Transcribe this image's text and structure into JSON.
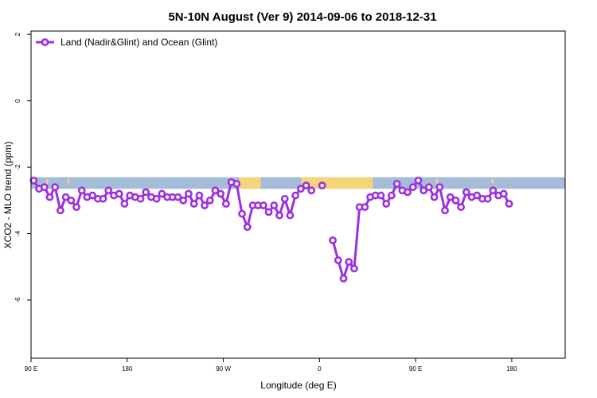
{
  "chart_data": {
    "type": "line",
    "title": "5N-10N August (Ver 9)   2014-09-06 to 2018-12-31",
    "xlabel": "Longitude (deg E)",
    "ylabel": "XCO2 - MLO trend (ppm)",
    "xlim": [
      90,
      590
    ],
    "ylim": [
      -7.75,
      2.1
    ],
    "x_ticks": [
      {
        "value": 90,
        "label": "90 E"
      },
      {
        "value": 180,
        "label": "180"
      },
      {
        "value": 270,
        "label": "90 W"
      },
      {
        "value": 360,
        "label": "0"
      },
      {
        "value": 450,
        "label": "90 E"
      },
      {
        "value": 540,
        "label": "180"
      }
    ],
    "y_ticks": [
      {
        "value": 2,
        "label": "2"
      },
      {
        "value": 0,
        "label": "0"
      },
      {
        "value": -2,
        "label": "-2"
      },
      {
        "value": -4,
        "label": "-4"
      },
      {
        "value": -6,
        "label": "-6"
      }
    ],
    "legend": {
      "position": "top-left",
      "entries": [
        "Land (Nadir&Glint) and Ocean (Glint)"
      ]
    },
    "grid": false,
    "series": [
      {
        "name": "Land (Nadir&Glint) and Ocean (Glint)",
        "color": "#9b30e0",
        "points": [
          [
            92.5,
            -2.4
          ],
          [
            97.5,
            -2.65
          ],
          [
            102.5,
            -2.6
          ],
          [
            107.5,
            -2.9
          ],
          [
            112.5,
            -2.6
          ],
          [
            117.5,
            -3.3
          ],
          [
            122.5,
            -2.9
          ],
          [
            127.5,
            -3.0
          ],
          [
            132.5,
            -3.2
          ],
          [
            137.5,
            -2.7
          ],
          [
            142.5,
            -2.9
          ],
          [
            147.5,
            -2.85
          ],
          [
            152.5,
            -2.95
          ],
          [
            157.5,
            -2.95
          ],
          [
            162.5,
            -2.7
          ],
          [
            167.5,
            -2.85
          ],
          [
            172.5,
            -2.8
          ],
          [
            177.5,
            -3.1
          ],
          [
            182.5,
            -2.85
          ],
          [
            187.5,
            -2.9
          ],
          [
            192.5,
            -2.95
          ],
          [
            197.5,
            -2.75
          ],
          [
            202.5,
            -2.9
          ],
          [
            207.5,
            -2.95
          ],
          [
            212.5,
            -2.8
          ],
          [
            217.5,
            -2.9
          ],
          [
            222.5,
            -2.9
          ],
          [
            227.5,
            -2.9
          ],
          [
            232.5,
            -3.0
          ],
          [
            237.5,
            -2.8
          ],
          [
            242.5,
            -3.1
          ],
          [
            247.5,
            -2.85
          ],
          [
            252.5,
            -3.15
          ],
          [
            257.5,
            -3.0
          ],
          [
            262.5,
            -2.7
          ],
          [
            267.5,
            -2.8
          ],
          [
            272.5,
            -3.1
          ],
          [
            277.5,
            -2.45
          ],
          [
            282.5,
            -2.5
          ],
          [
            287.5,
            -3.4
          ],
          [
            292.5,
            -3.8
          ],
          [
            297.5,
            -3.15
          ],
          [
            302.5,
            -3.15
          ],
          [
            307.5,
            -3.15
          ],
          [
            312.5,
            -3.35
          ],
          [
            317.5,
            -3.15
          ],
          [
            322.5,
            -3.45
          ],
          [
            327.5,
            -2.95
          ],
          [
            332.5,
            -3.45
          ],
          [
            337.5,
            -2.85
          ],
          [
            342.5,
            -2.65
          ],
          [
            347.5,
            -2.55
          ],
          [
            352.5,
            -2.7
          ],
          null,
          [
            362.5,
            -2.55
          ],
          null,
          [
            372.5,
            -4.2
          ],
          [
            377.5,
            -4.8
          ],
          [
            382.5,
            -5.35
          ],
          [
            387.5,
            -4.85
          ],
          [
            392.5,
            -5.05
          ],
          [
            397.5,
            -3.2
          ],
          [
            402.5,
            -3.2
          ],
          [
            407.5,
            -2.9
          ],
          [
            412.5,
            -2.85
          ],
          [
            417.5,
            -2.85
          ],
          [
            422.5,
            -3.1
          ],
          [
            427.5,
            -2.85
          ],
          [
            432.5,
            -2.5
          ],
          [
            437.5,
            -2.7
          ],
          [
            442.5,
            -2.75
          ],
          [
            447.5,
            -2.6
          ],
          [
            452.5,
            -2.4
          ],
          [
            457.5,
            -2.7
          ],
          [
            462.5,
            -2.6
          ],
          [
            467.5,
            -2.9
          ],
          [
            472.5,
            -2.6
          ],
          [
            477.5,
            -3.3
          ],
          [
            482.5,
            -2.9
          ],
          [
            487.5,
            -3.0
          ],
          [
            492.5,
            -3.2
          ],
          [
            497.5,
            -2.75
          ],
          [
            502.5,
            -2.9
          ],
          [
            507.5,
            -2.85
          ],
          [
            512.5,
            -2.95
          ],
          [
            517.5,
            -2.95
          ],
          [
            522.5,
            -2.7
          ],
          [
            527.5,
            -2.85
          ],
          [
            532.5,
            -2.8
          ],
          [
            537.5,
            -3.1
          ]
        ]
      }
    ],
    "background_map": {
      "y_range": [
        -2.65,
        -2.3
      ],
      "ocean_color": "#a5bcd8",
      "land_color": "#f5d57a",
      "segments": [
        {
          "x0": 90,
          "x1": 285,
          "kind": "ocean"
        },
        {
          "x0": 285,
          "x1": 305,
          "kind": "land"
        },
        {
          "x0": 305,
          "x1": 343,
          "kind": "ocean"
        },
        {
          "x0": 343,
          "x1": 410,
          "kind": "land"
        },
        {
          "x0": 410,
          "x1": 590,
          "kind": "ocean"
        }
      ],
      "islands": [
        105,
        125,
        276,
        455,
        470,
        522
      ]
    }
  }
}
